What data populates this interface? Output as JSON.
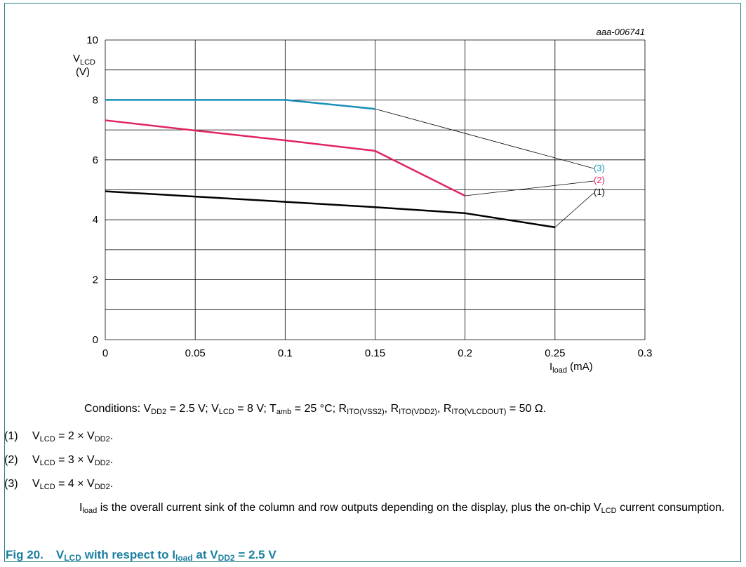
{
  "chart_data": {
    "type": "line",
    "code": "aaa-006741",
    "ylabel_main": "V",
    "ylabel_sub": "LCD",
    "ylabel_unit": "(V)",
    "xlabel_main": "I",
    "xlabel_sub": "load",
    "xlabel_unit": " (mA)",
    "xlim": [
      0,
      0.3
    ],
    "ylim": [
      0,
      10
    ],
    "x_ticks": [
      "0",
      "0.05",
      "0.1",
      "0.15",
      "0.2",
      "0.25",
      "0.3"
    ],
    "y_ticks": [
      "0",
      "2",
      "4",
      "6",
      "8",
      "10"
    ],
    "grid": true,
    "series": [
      {
        "name": "(1)",
        "color": "#000000",
        "x": [
          0,
          0.1,
          0.15,
          0.2,
          0.25
        ],
        "y": [
          4.95,
          4.6,
          4.42,
          4.22,
          3.75
        ],
        "label_anchor_x": 0.25,
        "label_anchor_y": 3.75
      },
      {
        "name": "(2)",
        "color": "#e0245e",
        "x": [
          0,
          0.05,
          0.1,
          0.15,
          0.2
        ],
        "y": [
          7.32,
          6.98,
          6.65,
          6.3,
          4.8
        ],
        "label_anchor_x": 0.2,
        "label_anchor_y": 4.8
      },
      {
        "name": "(3)",
        "color": "#1a8fb8",
        "x": [
          0,
          0.1,
          0.15
        ],
        "y": [
          8.0,
          8.0,
          7.7
        ],
        "label_anchor_x": 0.15,
        "label_anchor_y": 7.7
      }
    ]
  },
  "conditions": {
    "prefix": "Conditions: V",
    "vdd2_sub": "DD2",
    "vdd2_val": " = 2.5 V; V",
    "vlcd_sub": "LCD",
    "vlcd_val": " = 8 V; T",
    "tamb_sub": "amb",
    "tamb_val": " = 25 °C; R",
    "r1_sub": "ITO(VSS2)",
    "r1_sep": ", R",
    "r2_sub": "ITO(VDD2)",
    "r2_sep": ", R",
    "r3_sub": "ITO(VLCDOUT)",
    "r3_val": " = 50 Ω."
  },
  "notes": [
    {
      "num": "(1)",
      "v": "V",
      "v_sub": "LCD",
      "eq": " = 2 × V",
      "d_sub": "DD2",
      "end": "."
    },
    {
      "num": "(2)",
      "v": "V",
      "v_sub": "LCD",
      "eq": " = 3 × V",
      "d_sub": "DD2",
      "end": "."
    },
    {
      "num": "(3)",
      "v": "V",
      "v_sub": "LCD",
      "eq": " = 4 × V",
      "d_sub": "DD2",
      "end": "."
    }
  ],
  "iload_note": {
    "i": "I",
    "i_sub": "load",
    "text1": " is the overall current sink of the column and row outputs depending on the display, plus the on-chip V",
    "v_sub": "LCD",
    "text2": " current consumption."
  },
  "caption": {
    "number": "Fig 20.",
    "t1": "V",
    "s1": "LCD",
    "t2": " with respect to I",
    "s2": "load",
    "t3": " at V",
    "s3": "DD2",
    "t4": " = 2.5 V"
  }
}
